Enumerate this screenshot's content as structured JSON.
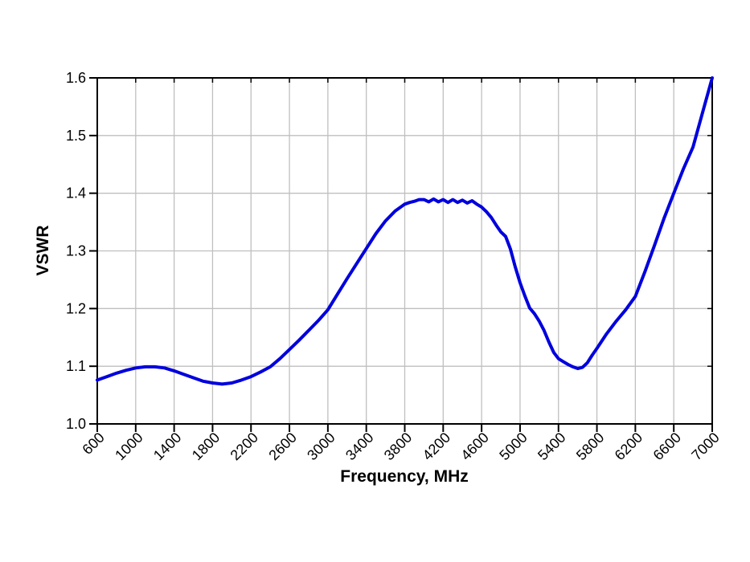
{
  "page": {
    "background": "#ffffff"
  },
  "chart_data": {
    "type": "line",
    "title": "",
    "xlabel": "Frequency, MHz",
    "ylabel": "VSWR",
    "xlim": [
      600,
      7000
    ],
    "ylim": [
      1.0,
      1.6
    ],
    "x_ticks": [
      600,
      1000,
      1400,
      1800,
      2200,
      2600,
      3000,
      3400,
      3800,
      4200,
      4600,
      5000,
      5400,
      5800,
      6200,
      6600,
      7000
    ],
    "y_ticks": [
      1.0,
      1.1,
      1.2,
      1.3,
      1.4,
      1.5,
      1.6
    ],
    "grid": true,
    "legend_position": "none",
    "line_color": "#0000dd",
    "grid_color": "#bfbfbf",
    "axis_color": "#000000",
    "series": [
      {
        "name": "VSWR",
        "x": [
          600,
          700,
          800,
          900,
          1000,
          1100,
          1200,
          1300,
          1400,
          1500,
          1600,
          1700,
          1800,
          1900,
          2000,
          2100,
          2200,
          2300,
          2400,
          2500,
          2600,
          2700,
          2800,
          2900,
          3000,
          3100,
          3200,
          3300,
          3400,
          3500,
          3600,
          3700,
          3800,
          3850,
          3900,
          3950,
          4000,
          4050,
          4100,
          4150,
          4200,
          4250,
          4300,
          4350,
          4400,
          4450,
          4500,
          4550,
          4600,
          4650,
          4700,
          4750,
          4800,
          4850,
          4900,
          4950,
          5000,
          5050,
          5100,
          5150,
          5200,
          5250,
          5300,
          5350,
          5400,
          5450,
          5500,
          5550,
          5600,
          5650,
          5700,
          5750,
          5800,
          5900,
          6000,
          6100,
          6200,
          6300,
          6400,
          6500,
          6600,
          6700,
          6800,
          6900,
          7000
        ],
        "y": [
          1.076,
          1.082,
          1.088,
          1.093,
          1.097,
          1.099,
          1.099,
          1.097,
          1.092,
          1.086,
          1.08,
          1.074,
          1.071,
          1.069,
          1.071,
          1.076,
          1.082,
          1.09,
          1.099,
          1.113,
          1.129,
          1.145,
          1.162,
          1.179,
          1.198,
          1.225,
          1.252,
          1.278,
          1.304,
          1.33,
          1.352,
          1.369,
          1.381,
          1.384,
          1.386,
          1.389,
          1.389,
          1.385,
          1.39,
          1.385,
          1.389,
          1.384,
          1.389,
          1.384,
          1.388,
          1.383,
          1.387,
          1.381,
          1.376,
          1.368,
          1.358,
          1.345,
          1.333,
          1.325,
          1.303,
          1.272,
          1.245,
          1.222,
          1.201,
          1.191,
          1.178,
          1.162,
          1.142,
          1.124,
          1.113,
          1.108,
          1.103,
          1.099,
          1.096,
          1.098,
          1.106,
          1.119,
          1.131,
          1.156,
          1.178,
          1.198,
          1.221,
          1.264,
          1.31,
          1.357,
          1.4,
          1.442,
          1.48,
          1.54,
          1.6
        ]
      }
    ]
  }
}
